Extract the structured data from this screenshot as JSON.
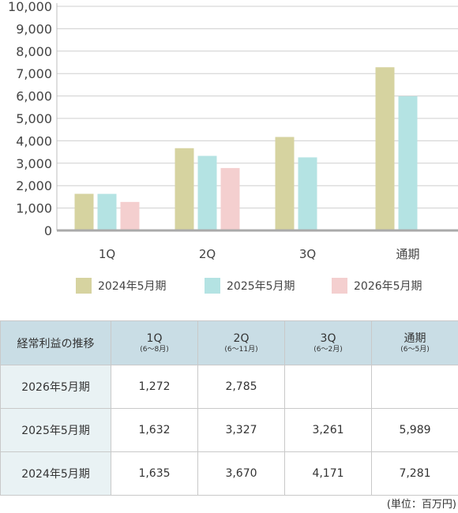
{
  "colors": {
    "fy2024": "#d6d3a0",
    "fy2025": "#b4e3e3",
    "fy2026": "#f4cfcf",
    "header_bg": "#c9dde5",
    "rowhead_bg": "#e9f2f4"
  },
  "chart_data": {
    "type": "bar",
    "categories": [
      "1Q",
      "2Q",
      "3Q",
      "通期"
    ],
    "ylim": [
      0,
      10000
    ],
    "yticks": [
      "0",
      "1,000",
      "2,000",
      "3,000",
      "4,000",
      "5,000",
      "6,000",
      "7,000",
      "8,000",
      "9,000",
      "10,000"
    ],
    "ytick_values": [
      0,
      1000,
      2000,
      3000,
      4000,
      5000,
      6000,
      7000,
      8000,
      9000,
      10000
    ],
    "xlabel": "",
    "ylabel": "",
    "grid": true,
    "legend_position": "bottom",
    "series": [
      {
        "name": "2024年5月期",
        "color": "#d6d3a0",
        "values": [
          1635,
          3670,
          4171,
          7281
        ]
      },
      {
        "name": "2025年5月期",
        "color": "#b4e3e3",
        "values": [
          1632,
          3327,
          3261,
          5989
        ]
      },
      {
        "name": "2026年5月期",
        "color": "#f4cfcf",
        "values": [
          1272,
          2785,
          null,
          null
        ]
      }
    ]
  },
  "table": {
    "corner": "経常利益の推移",
    "columns": [
      {
        "label": "1Q",
        "sub": "(6～8月)"
      },
      {
        "label": "2Q",
        "sub": "(6～11月)"
      },
      {
        "label": "3Q",
        "sub": "(6～2月)"
      },
      {
        "label": "通期",
        "sub": "(6～5月)"
      }
    ],
    "rows": [
      {
        "label": "2026年5月期",
        "cells": [
          "1,272",
          "2,785",
          "",
          ""
        ]
      },
      {
        "label": "2025年5月期",
        "cells": [
          "1,632",
          "3,327",
          "3,261",
          "5,989"
        ]
      },
      {
        "label": "2024年5月期",
        "cells": [
          "1,635",
          "3,670",
          "4,171",
          "7,281"
        ]
      }
    ]
  },
  "unit": "(単位：百万円)"
}
